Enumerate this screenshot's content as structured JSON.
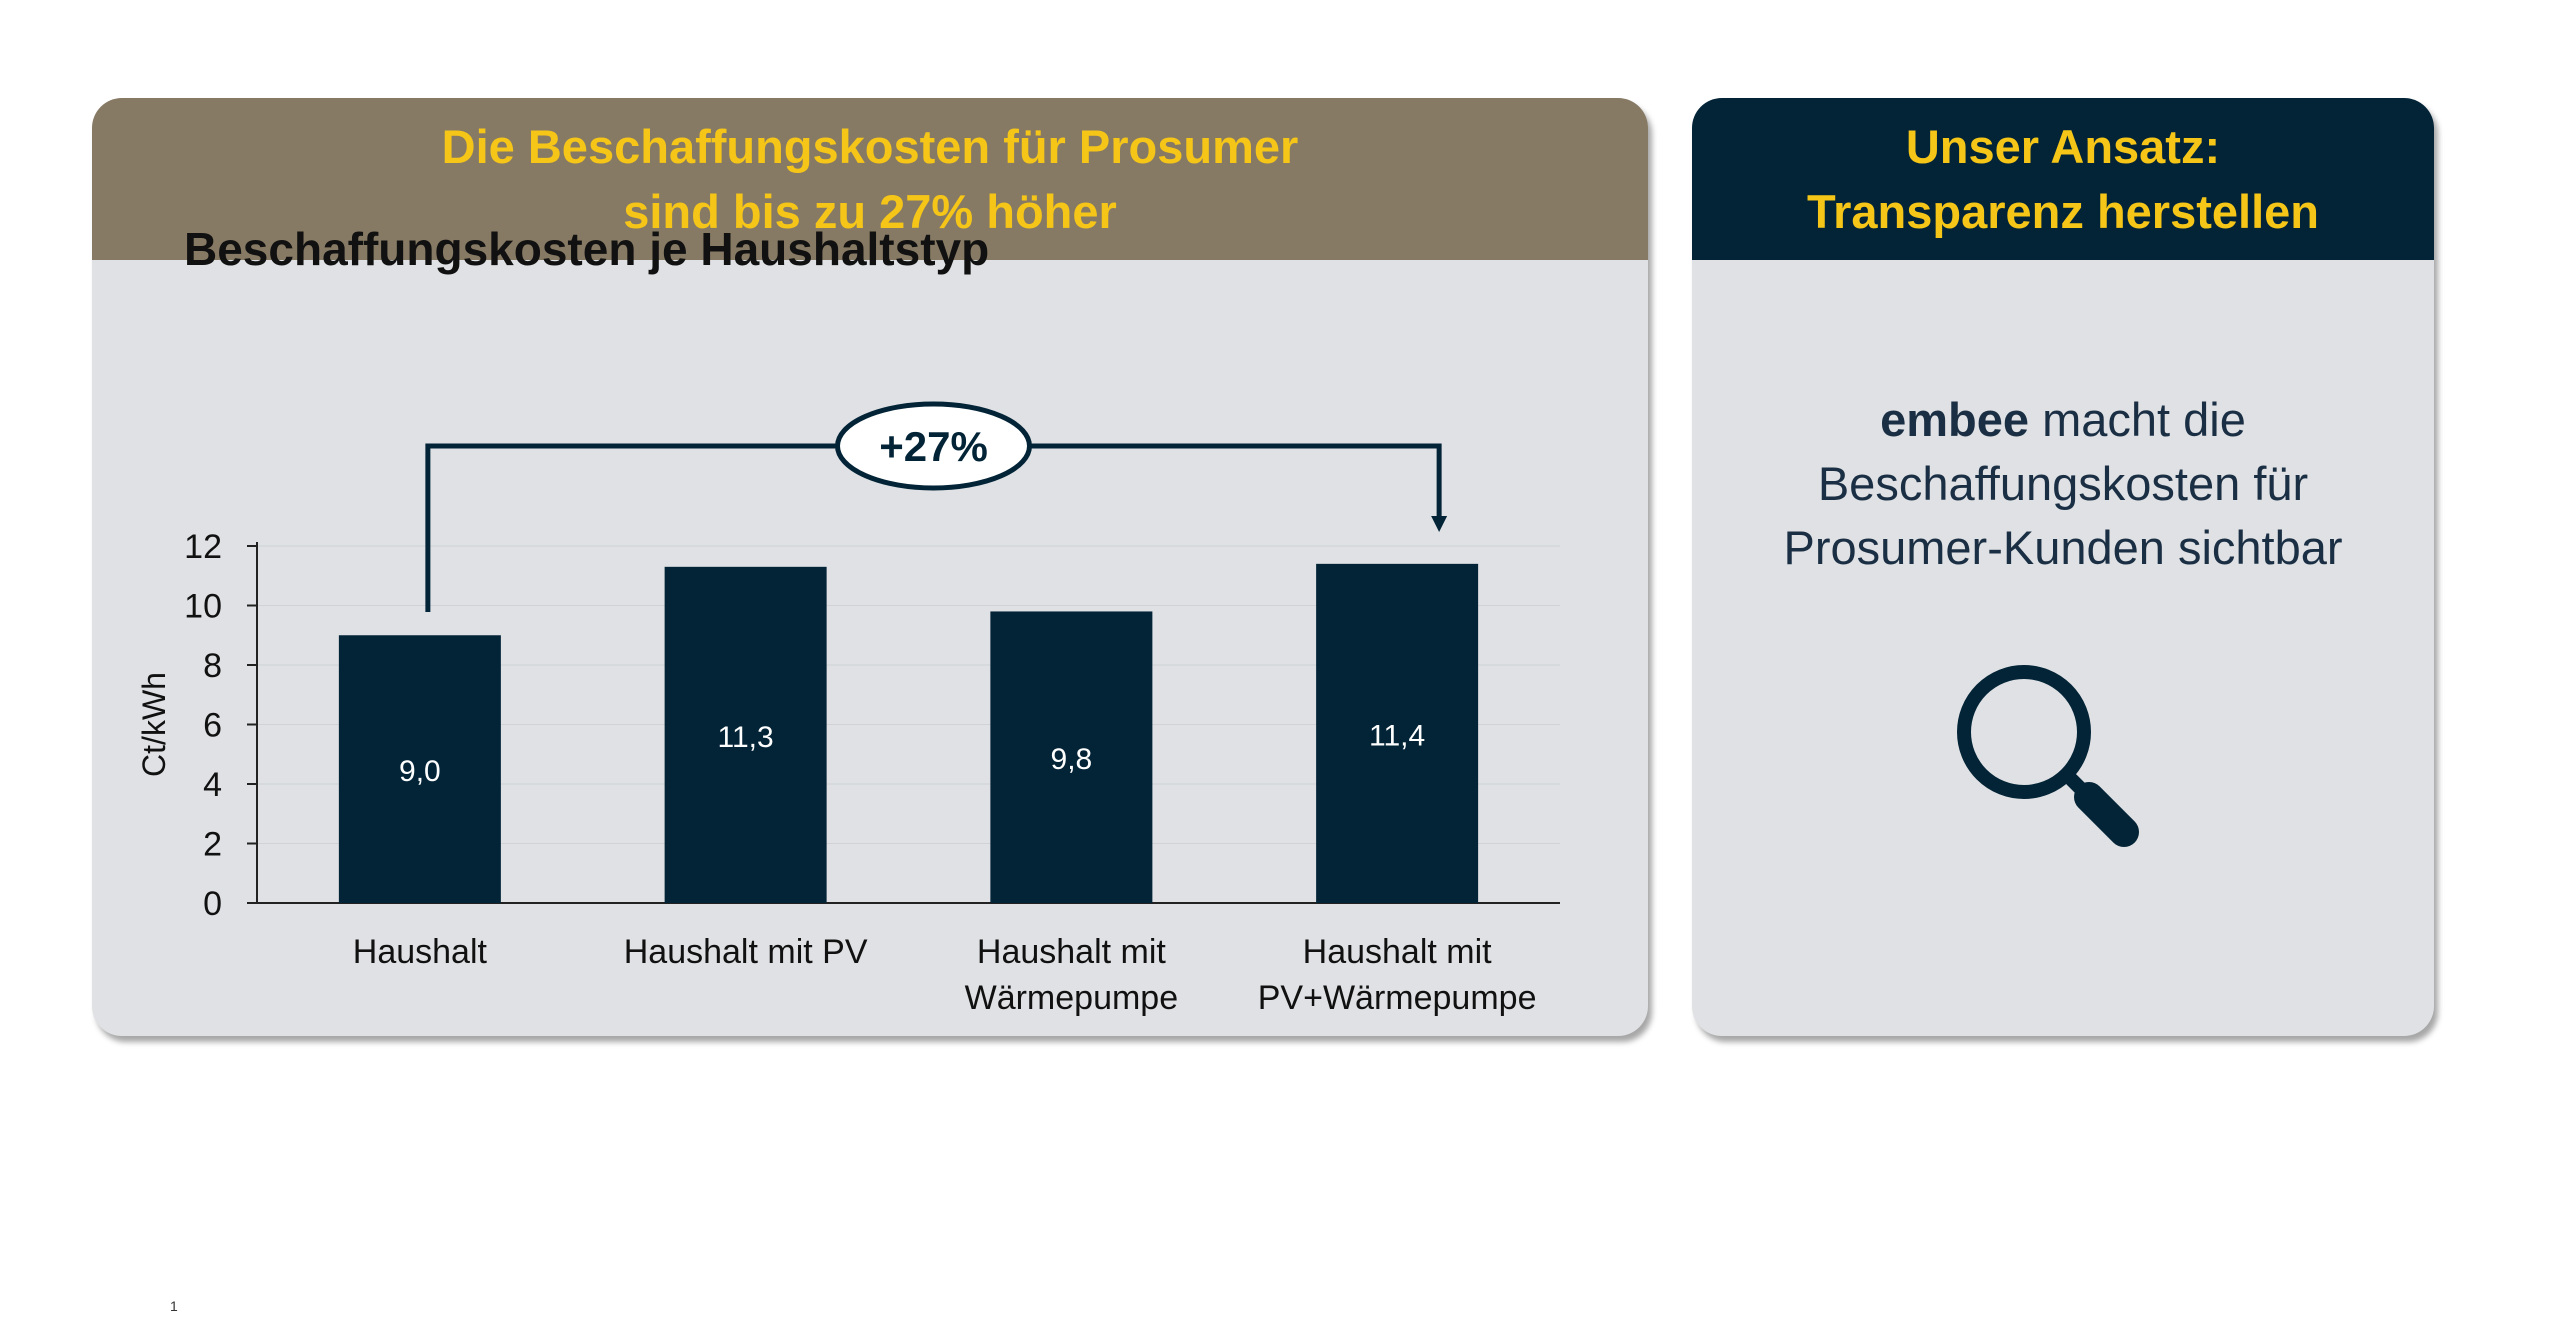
{
  "left_card": {
    "header_line1": "Die Beschaffungskosten für Prosumer",
    "header_line2": "sind bis zu 27% höher"
  },
  "right_card": {
    "header_line1": "Unser Ansatz:",
    "header_line2": "Transparenz herstellen",
    "brand": "embee",
    "text_line1_rest": " macht die",
    "text_line2": "Beschaffungskosten für",
    "text_line3": "Prosumer-Kunden sichtbar",
    "icon": "search-icon"
  },
  "footnote": "1",
  "colors": {
    "left_header": "#877a64",
    "right_header": "#032437",
    "header_text": "#f5c518",
    "bar": "#032437",
    "card_bg": "#dfe1e4"
  },
  "chart_data": {
    "type": "bar",
    "title": "Beschaffungskosten je Haushaltstyp",
    "ylabel": "Ct/kWh",
    "xlabel": "",
    "ylim": [
      0,
      12
    ],
    "yticks": [
      "0",
      "2",
      "4",
      "6",
      "8",
      "10",
      "12"
    ],
    "categories": [
      [
        "Haushalt"
      ],
      [
        "Haushalt mit PV"
      ],
      [
        "Haushalt mit",
        "Wärmepumpe"
      ],
      [
        "Haushalt mit",
        "PV+Wärmepumpe"
      ]
    ],
    "values": [
      9.0,
      11.3,
      9.8,
      11.4
    ],
    "data_labels": [
      "9,0",
      "11,3",
      "9,8",
      "11,4"
    ],
    "annotation": {
      "text": "+27%",
      "from_category": 0,
      "to_category": 3
    },
    "grid": true
  }
}
